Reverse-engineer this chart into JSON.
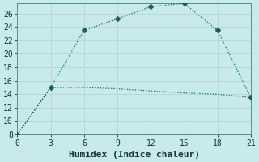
{
  "xlabel": "Humidex (Indice chaleur)",
  "background_color": "#c8eaea",
  "grid_color": "#b8d8d8",
  "line1_x": [
    0,
    3,
    6,
    9,
    12,
    15,
    18,
    21
  ],
  "line1_y": [
    8,
    15,
    23.5,
    25.2,
    27.0,
    27.5,
    23.5,
    13.5
  ],
  "line2_x": [
    0,
    3,
    6,
    9,
    12,
    15,
    18,
    21
  ],
  "line2_y": [
    8,
    15,
    15.0,
    14.8,
    14.5,
    14.2,
    14.0,
    13.5
  ],
  "line_color": "#1a6060",
  "marker": "D",
  "marker_size": 3,
  "xlim": [
    0,
    21
  ],
  "ylim": [
    8,
    27.5
  ],
  "xticks": [
    0,
    3,
    6,
    9,
    12,
    15,
    18,
    21
  ],
  "yticks": [
    8,
    10,
    12,
    14,
    16,
    18,
    20,
    22,
    24,
    26
  ],
  "tick_fontsize": 7,
  "label_fontsize": 8
}
